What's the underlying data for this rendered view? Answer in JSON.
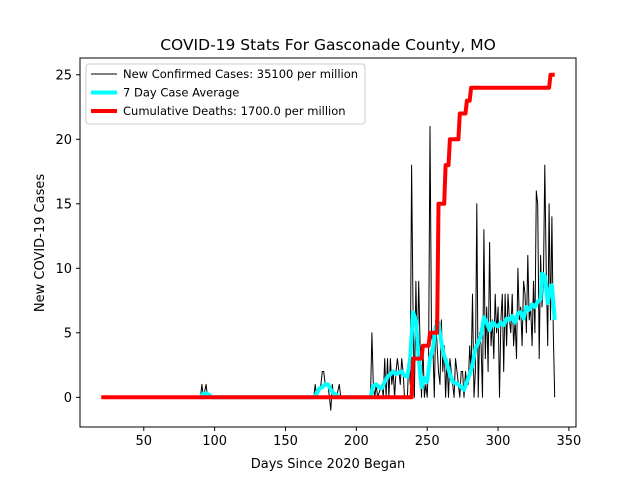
{
  "chart_data": {
    "type": "line",
    "title": "COVID-19 Stats For Gasconade County, MO",
    "xlabel": "Days Since 2020 Began",
    "ylabel": "New COVID-19 Cases",
    "xlim": [
      5,
      355
    ],
    "ylim": [
      -2.3,
      26.3
    ],
    "xticks": [
      50,
      100,
      150,
      200,
      250,
      300,
      350
    ],
    "yticks": [
      0,
      5,
      10,
      15,
      20,
      25
    ],
    "grid": false,
    "legend_position": "top-left",
    "series": [
      {
        "name": "New Confirmed Cases: 35100 per million",
        "color": "#000000",
        "width": 1,
        "points": [
          [
            20,
            0
          ],
          [
            90,
            0
          ],
          [
            91,
            1
          ],
          [
            92,
            0
          ],
          [
            94,
            1
          ],
          [
            95,
            0
          ],
          [
            96,
            0
          ],
          [
            170,
            0
          ],
          [
            171,
            1
          ],
          [
            172,
            0
          ],
          [
            175,
            1
          ],
          [
            176,
            2
          ],
          [
            177,
            2
          ],
          [
            178,
            1
          ],
          [
            180,
            1
          ],
          [
            181,
            0
          ],
          [
            182,
            -1
          ],
          [
            183,
            1
          ],
          [
            184,
            0
          ],
          [
            186,
            0
          ],
          [
            188,
            1
          ],
          [
            189,
            0
          ],
          [
            210,
            0
          ],
          [
            211,
            5
          ],
          [
            212,
            1
          ],
          [
            213,
            0
          ],
          [
            214,
            1
          ],
          [
            215,
            0
          ],
          [
            218,
            1
          ],
          [
            219,
            0
          ],
          [
            220,
            3
          ],
          [
            221,
            0
          ],
          [
            222,
            3
          ],
          [
            223,
            0
          ],
          [
            224,
            3
          ],
          [
            225,
            1
          ],
          [
            226,
            2
          ],
          [
            227,
            0
          ],
          [
            228,
            2
          ],
          [
            229,
            3
          ],
          [
            230,
            2
          ],
          [
            231,
            1
          ],
          [
            232,
            3
          ],
          [
            233,
            2
          ],
          [
            234,
            0
          ],
          [
            236,
            0
          ],
          [
            237,
            3
          ],
          [
            238,
            1
          ],
          [
            239,
            18
          ],
          [
            240,
            7
          ],
          [
            241,
            0
          ],
          [
            242,
            9
          ],
          [
            243,
            3
          ],
          [
            244,
            9
          ],
          [
            245,
            4
          ],
          [
            246,
            0
          ],
          [
            247,
            4
          ],
          [
            248,
            0
          ],
          [
            249,
            1
          ],
          [
            250,
            0
          ],
          [
            251,
            3
          ],
          [
            252,
            21
          ],
          [
            253,
            5
          ],
          [
            254,
            4
          ],
          [
            255,
            0
          ],
          [
            256,
            6
          ],
          [
            257,
            4
          ],
          [
            258,
            2
          ],
          [
            259,
            1
          ],
          [
            260,
            6
          ],
          [
            261,
            2
          ],
          [
            262,
            4
          ],
          [
            263,
            0
          ],
          [
            264,
            3
          ],
          [
            265,
            0
          ],
          [
            266,
            3
          ],
          [
            267,
            2
          ],
          [
            268,
            1
          ],
          [
            269,
            0
          ],
          [
            270,
            3
          ],
          [
            271,
            2
          ],
          [
            272,
            1
          ],
          [
            273,
            0
          ],
          [
            274,
            2
          ],
          [
            275,
            2
          ],
          [
            276,
            0
          ],
          [
            277,
            2
          ],
          [
            278,
            1
          ],
          [
            279,
            1
          ],
          [
            280,
            4
          ],
          [
            281,
            2
          ],
          [
            282,
            8
          ],
          [
            283,
            0
          ],
          [
            284,
            2
          ],
          [
            285,
            15
          ],
          [
            286,
            0
          ],
          [
            287,
            5
          ],
          [
            288,
            4
          ],
          [
            289,
            0
          ],
          [
            290,
            13
          ],
          [
            291,
            3
          ],
          [
            292,
            7
          ],
          [
            293,
            2
          ],
          [
            294,
            12
          ],
          [
            295,
            4
          ],
          [
            296,
            6
          ],
          [
            297,
            3
          ],
          [
            298,
            8
          ],
          [
            299,
            5
          ],
          [
            300,
            7
          ],
          [
            301,
            0
          ],
          [
            302,
            6
          ],
          [
            303,
            8
          ],
          [
            304,
            2
          ],
          [
            305,
            8
          ],
          [
            306,
            4
          ],
          [
            307,
            8
          ],
          [
            308,
            6
          ],
          [
            309,
            5
          ],
          [
            310,
            8
          ],
          [
            311,
            4
          ],
          [
            312,
            6
          ],
          [
            313,
            3
          ],
          [
            314,
            10
          ],
          [
            315,
            6
          ],
          [
            316,
            7
          ],
          [
            317,
            4
          ],
          [
            318,
            9
          ],
          [
            319,
            8
          ],
          [
            320,
            5
          ],
          [
            321,
            11
          ],
          [
            322,
            6
          ],
          [
            323,
            7
          ],
          [
            324,
            4
          ],
          [
            325,
            9
          ],
          [
            326,
            5
          ],
          [
            327,
            16
          ],
          [
            328,
            15
          ],
          [
            329,
            3
          ],
          [
            330,
            11
          ],
          [
            331,
            7
          ],
          [
            332,
            9
          ],
          [
            333,
            18
          ],
          [
            334,
            10
          ],
          [
            335,
            4
          ],
          [
            336,
            15
          ],
          [
            337,
            6
          ],
          [
            338,
            14
          ],
          [
            339,
            5
          ],
          [
            340,
            0
          ]
        ]
      },
      {
        "name": "7 Day Case Average",
        "color": "#00ffff",
        "width": 4,
        "points": [
          [
            90,
            0
          ],
          [
            92,
            0.3
          ],
          [
            94,
            0.3
          ],
          [
            96,
            0.2
          ],
          [
            98,
            0
          ],
          [
            170,
            0
          ],
          [
            172,
            0.3
          ],
          [
            174,
            0.7
          ],
          [
            176,
            0.8
          ],
          [
            178,
            1.0
          ],
          [
            180,
            1.0
          ],
          [
            182,
            0.6
          ],
          [
            184,
            0.3
          ],
          [
            186,
            0.2
          ],
          [
            188,
            0
          ],
          [
            210,
            0
          ],
          [
            212,
            0.9
          ],
          [
            214,
            1.0
          ],
          [
            216,
            0.8
          ],
          [
            218,
            0.7
          ],
          [
            220,
            1.2
          ],
          [
            222,
            1.6
          ],
          [
            224,
            1.8
          ],
          [
            226,
            2.0
          ],
          [
            228,
            1.8
          ],
          [
            230,
            1.9
          ],
          [
            232,
            2.0
          ],
          [
            234,
            1.7
          ],
          [
            236,
            1.6
          ],
          [
            238,
            3.0
          ],
          [
            240,
            6.6
          ],
          [
            242,
            6.0
          ],
          [
            244,
            3.0
          ],
          [
            246,
            0.8
          ],
          [
            248,
            1.5
          ],
          [
            250,
            1.2
          ],
          [
            252,
            3.0
          ],
          [
            254,
            3.8
          ],
          [
            256,
            5.5
          ],
          [
            258,
            5.8
          ],
          [
            260,
            4.2
          ],
          [
            262,
            3.2
          ],
          [
            264,
            2.6
          ],
          [
            266,
            1.8
          ],
          [
            268,
            1.2
          ],
          [
            270,
            1.1
          ],
          [
            272,
            1.0
          ],
          [
            274,
            0.8
          ],
          [
            276,
            0.6
          ],
          [
            278,
            1.2
          ],
          [
            280,
            1.8
          ],
          [
            282,
            2.5
          ],
          [
            284,
            3.8
          ],
          [
            286,
            4.2
          ],
          [
            288,
            4.8
          ],
          [
            290,
            6.2
          ],
          [
            292,
            5.8
          ],
          [
            294,
            5.2
          ],
          [
            296,
            5.8
          ],
          [
            298,
            5.6
          ],
          [
            300,
            5.5
          ],
          [
            302,
            5.8
          ],
          [
            304,
            5.6
          ],
          [
            306,
            6.1
          ],
          [
            308,
            6.0
          ],
          [
            310,
            6.3
          ],
          [
            312,
            5.8
          ],
          [
            314,
            6.5
          ],
          [
            316,
            6.6
          ],
          [
            318,
            6.1
          ],
          [
            320,
            7.0
          ],
          [
            322,
            6.8
          ],
          [
            324,
            7.2
          ],
          [
            326,
            7.0
          ],
          [
            328,
            7.4
          ],
          [
            330,
            7.6
          ],
          [
            331,
            9.6
          ],
          [
            333,
            9.4
          ],
          [
            335,
            7.3
          ],
          [
            337,
            8.6
          ],
          [
            338,
            8.7
          ],
          [
            340,
            6.0
          ]
        ]
      },
      {
        "name": "Cumulative Deaths: 1700.0 per million",
        "color": "#ff0000",
        "width": 4,
        "points": [
          [
            20,
            0
          ],
          [
            239,
            0
          ],
          [
            240,
            3
          ],
          [
            246,
            3
          ],
          [
            247,
            4
          ],
          [
            251,
            4
          ],
          [
            252,
            5
          ],
          [
            257,
            5
          ],
          [
            258,
            15
          ],
          [
            262,
            15
          ],
          [
            263,
            18
          ],
          [
            265,
            18
          ],
          [
            266,
            20
          ],
          [
            272,
            20
          ],
          [
            273,
            22
          ],
          [
            277,
            22
          ],
          [
            278,
            23
          ],
          [
            280,
            23
          ],
          [
            281,
            24
          ],
          [
            336,
            24
          ],
          [
            337,
            25
          ],
          [
            340,
            25
          ]
        ]
      }
    ]
  }
}
